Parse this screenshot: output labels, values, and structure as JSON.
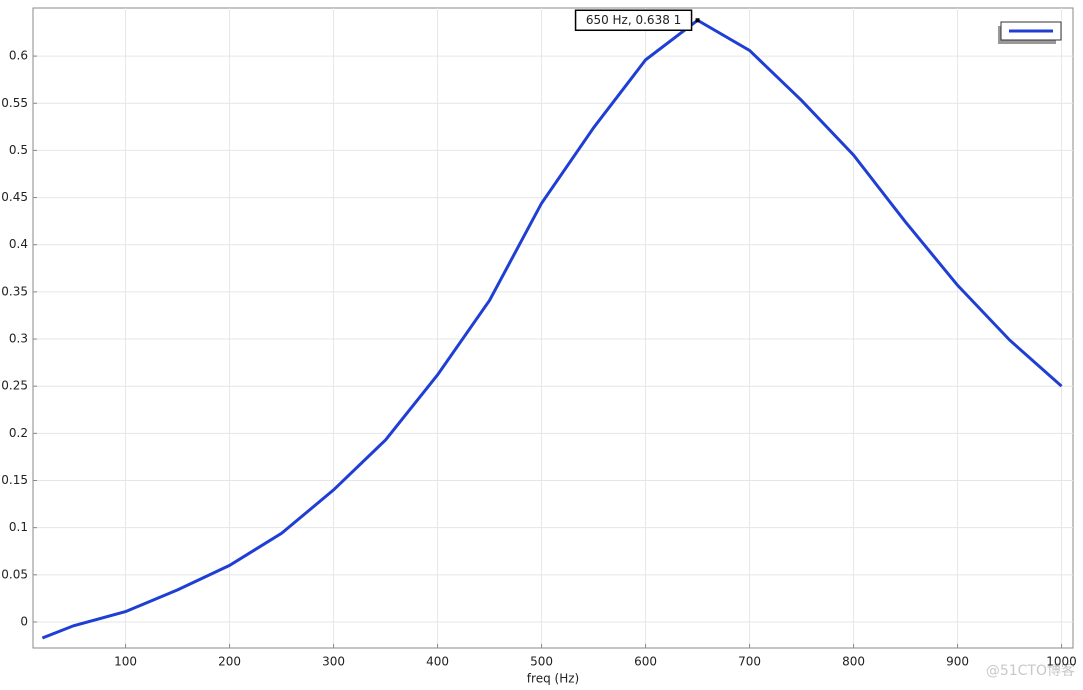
{
  "chart_data": {
    "type": "line",
    "xlabel": "freq (Hz)",
    "x": [
      20,
      50,
      100,
      150,
      200,
      250,
      300,
      350,
      400,
      450,
      500,
      550,
      600,
      650,
      700,
      750,
      800,
      850,
      900,
      950,
      1000
    ],
    "series": [
      {
        "color": "#1f3fd4",
        "values": [
          -0.017,
          -0.004,
          0.011,
          0.034,
          0.06,
          0.094,
          0.14,
          0.193,
          0.262,
          0.341,
          0.444,
          0.524,
          0.596,
          0.638,
          0.606,
          0.553,
          0.495,
          0.424,
          0.357,
          0.299,
          0.25
        ]
      }
    ],
    "xlim": [
      11,
      1011
    ],
    "ylim": [
      -0.0276,
      0.651
    ],
    "xticks": [
      100,
      200,
      300,
      400,
      500,
      600,
      700,
      800,
      900,
      1000
    ],
    "yticks": [
      0,
      0.05,
      0.1,
      0.15,
      0.2,
      0.25,
      0.3,
      0.35,
      0.4,
      0.45,
      0.5,
      0.55,
      0.6
    ],
    "grid": true,
    "legend": "top-right",
    "annotation": {
      "text": "650 Hz, 0.638 1",
      "x": 650,
      "y": 0.638
    },
    "watermark": "@51CTO博客"
  }
}
